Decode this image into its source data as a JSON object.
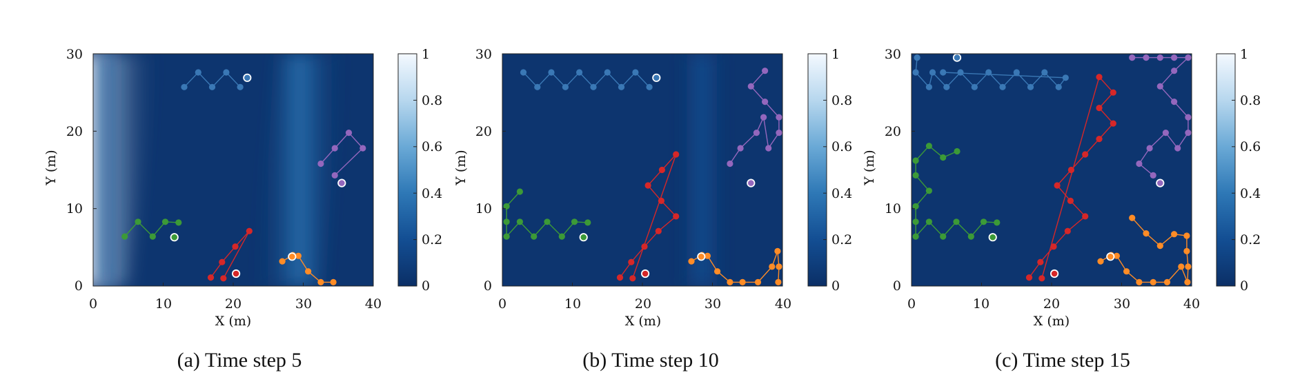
{
  "chart_data": [
    {
      "type": "heatmap",
      "caption": "(a) Time step 5",
      "xlabel": "X (m)",
      "ylabel": "Y (m)",
      "xlim": [
        0,
        40
      ],
      "ylim": [
        0,
        30
      ],
      "xticks": [
        "0",
        "10",
        "20",
        "30",
        "40"
      ],
      "yticks": [
        "0",
        "10",
        "20",
        "30"
      ],
      "colorbar": {
        "range": [
          0,
          1
        ],
        "ticks": [
          "0",
          "0.2",
          "0.4",
          "0.6",
          "0.8",
          "1"
        ]
      },
      "colormap": [
        "#0b2f66",
        "#134e93",
        "#2e78b6",
        "#6aa9d6",
        "#b7d7ee",
        "#f4f9ff"
      ],
      "field_bands": [
        {
          "x_top": 2,
          "x_bottom": -2,
          "width": 14,
          "intensity": 0.95
        },
        {
          "x_top": 31,
          "x_bottom": 28,
          "width": 9,
          "intensity": 0.35
        },
        {
          "x_top": 2,
          "x_bottom": 2,
          "width": 4,
          "intensity": 0.3
        }
      ],
      "series": [
        {
          "color": "#3a78b5",
          "points": [
            [
              13,
              25.7
            ],
            [
              15,
              27.6
            ],
            [
              17,
              25.7
            ],
            [
              19,
              27.6
            ],
            [
              21,
              25.7
            ],
            [
              22,
              26.9
            ]
          ]
        },
        {
          "color": "#9467bd",
          "points": [
            [
              32.5,
              15.8
            ],
            [
              34.5,
              17.8
            ],
            [
              36.5,
              19.8
            ],
            [
              38.5,
              17.8
            ],
            [
              34.5,
              14.3
            ],
            [
              35.5,
              13.3
            ]
          ]
        },
        {
          "color": "#3c9a37",
          "points": [
            [
              4.5,
              6.4
            ],
            [
              6.4,
              8.3
            ],
            [
              8.5,
              6.4
            ],
            [
              10.3,
              8.3
            ],
            [
              12.2,
              8.2
            ],
            [
              11.6,
              6.3
            ]
          ]
        },
        {
          "color": "#d62728",
          "points": [
            [
              16.8,
              1.1
            ],
            [
              18.4,
              3.1
            ],
            [
              20.3,
              5.1
            ],
            [
              22.3,
              7.1
            ],
            [
              18.6,
              1.0
            ],
            [
              20.4,
              1.6
            ]
          ]
        },
        {
          "color": "#ff8c26",
          "points": [
            [
              27,
              3.2
            ],
            [
              28.5,
              4.0
            ],
            [
              29.3,
              3.9
            ],
            [
              30.7,
              1.9
            ],
            [
              32.5,
              0.5
            ],
            [
              34.3,
              0.5
            ],
            [
              28.4,
              3.8
            ]
          ]
        }
      ]
    },
    {
      "type": "heatmap",
      "caption": "(b) Time step 10",
      "xlabel": "X (m)",
      "ylabel": "Y (m)",
      "xlim": [
        0,
        40
      ],
      "ylim": [
        0,
        30
      ],
      "xticks": [
        "0",
        "10",
        "20",
        "30",
        "40"
      ],
      "yticks": [
        "0",
        "10",
        "20",
        "30"
      ],
      "colorbar": {
        "range": [
          0,
          1
        ],
        "ticks": [
          "0",
          "0.2",
          "0.4",
          "0.6",
          "0.8",
          "1"
        ]
      },
      "colormap": [
        "#0b2f66",
        "#134e93",
        "#2e78b6",
        "#6aa9d6",
        "#b7d7ee",
        "#f4f9ff"
      ],
      "field_bands": [
        {
          "x_top": 28.5,
          "x_bottom": 28.5,
          "width": 6,
          "intensity": 0.22
        }
      ],
      "series": [
        {
          "color": "#3a78b5",
          "points": [
            [
              3,
              27.6
            ],
            [
              5,
              25.7
            ],
            [
              7,
              27.6
            ],
            [
              9,
              25.7
            ],
            [
              11,
              27.6
            ],
            [
              13,
              25.7
            ],
            [
              15,
              27.6
            ],
            [
              17,
              25.7
            ],
            [
              19,
              27.6
            ],
            [
              21,
              25.7
            ],
            [
              22,
              26.9
            ]
          ]
        },
        {
          "color": "#9467bd",
          "points": [
            [
              32.5,
              15.8
            ],
            [
              34,
              17.8
            ],
            [
              36.3,
              19.8
            ],
            [
              37.3,
              21.8
            ],
            [
              38,
              17.8
            ],
            [
              39.5,
              19.8
            ],
            [
              39.5,
              21.8
            ],
            [
              37.5,
              23.8
            ],
            [
              35.5,
              25.8
            ],
            [
              37.5,
              27.8
            ],
            [
              35.5,
              13.3
            ]
          ]
        },
        {
          "color": "#3c9a37",
          "points": [
            [
              2.5,
              12.2
            ],
            [
              0.6,
              10.3
            ],
            [
              0.6,
              8.3
            ],
            [
              0.6,
              6.4
            ],
            [
              2.5,
              8.3
            ],
            [
              4.5,
              6.4
            ],
            [
              6.4,
              8.3
            ],
            [
              8.5,
              6.4
            ],
            [
              10.3,
              8.3
            ],
            [
              12.2,
              8.2
            ],
            [
              11.6,
              6.3
            ]
          ]
        },
        {
          "color": "#d62728",
          "points": [
            [
              16.8,
              1.1
            ],
            [
              18.4,
              3.1
            ],
            [
              20.3,
              5.1
            ],
            [
              22.3,
              7.1
            ],
            [
              24.8,
              9.0
            ],
            [
              22.7,
              11.0
            ],
            [
              20.8,
              13.0
            ],
            [
              22.8,
              15.0
            ],
            [
              24.8,
              17.0
            ],
            [
              18.6,
              1.0
            ],
            [
              20.4,
              1.6
            ]
          ]
        },
        {
          "color": "#ff8c26",
          "points": [
            [
              27,
              3.2
            ],
            [
              28.5,
              4.0
            ],
            [
              29.3,
              3.9
            ],
            [
              30.7,
              1.9
            ],
            [
              32.5,
              0.5
            ],
            [
              34.3,
              0.5
            ],
            [
              36.5,
              0.5
            ],
            [
              38.5,
              2.5
            ],
            [
              39.3,
              4.5
            ],
            [
              39.5,
              2.5
            ],
            [
              39.4,
              0.5
            ],
            [
              28.4,
              3.8
            ]
          ]
        }
      ]
    },
    {
      "type": "heatmap",
      "caption": "(c) Time step 15",
      "xlabel": "X (m)",
      "ylabel": "Y (m)",
      "xlim": [
        0,
        40
      ],
      "ylim": [
        0,
        30
      ],
      "xticks": [
        "0",
        "10",
        "20",
        "30",
        "40"
      ],
      "yticks": [
        "0",
        "10",
        "20",
        "30"
      ],
      "colorbar": {
        "range": [
          0,
          1
        ],
        "ticks": [
          "0",
          "0.2",
          "0.4",
          "0.6",
          "0.8",
          "1"
        ]
      },
      "colormap": [
        "#0b2f66",
        "#134e93",
        "#2e78b6",
        "#6aa9d6",
        "#b7d7ee",
        "#f4f9ff"
      ],
      "field_bands": [],
      "series": [
        {
          "color": "#3a78b5",
          "points": [
            [
              0.8,
              29.5
            ],
            [
              0.6,
              27.6
            ],
            [
              2.5,
              25.7
            ],
            [
              3,
              27.6
            ],
            [
              5,
              25.7
            ],
            [
              7,
              27.6
            ],
            [
              9,
              25.7
            ],
            [
              11,
              27.6
            ],
            [
              13,
              25.7
            ],
            [
              15,
              27.6
            ],
            [
              17,
              25.7
            ],
            [
              19,
              27.6
            ],
            [
              21,
              25.7
            ],
            [
              22,
              26.9
            ],
            [
              4.5,
              27.6
            ],
            [
              6.5,
              29.5
            ]
          ]
        },
        {
          "color": "#9467bd",
          "points": [
            [
              31.5,
              29.5
            ],
            [
              33.5,
              29.5
            ],
            [
              35.5,
              29.5
            ],
            [
              37.5,
              29.5
            ],
            [
              39.5,
              29.5
            ],
            [
              37.5,
              27.8
            ],
            [
              35.5,
              25.8
            ],
            [
              37.5,
              23.8
            ],
            [
              39.5,
              21.8
            ],
            [
              39.5,
              19.8
            ],
            [
              38,
              17.8
            ],
            [
              36.3,
              19.8
            ],
            [
              34,
              17.8
            ],
            [
              32.5,
              15.8
            ],
            [
              34.5,
              14.3
            ],
            [
              35.5,
              13.3
            ]
          ]
        },
        {
          "color": "#3c9a37",
          "points": [
            [
              6.5,
              17.4
            ],
            [
              4.5,
              16.6
            ],
            [
              2.5,
              18.1
            ],
            [
              0.6,
              16.2
            ],
            [
              0.6,
              14.3
            ],
            [
              2.5,
              12.3
            ],
            [
              0.6,
              10.3
            ],
            [
              0.6,
              8.3
            ],
            [
              0.6,
              6.4
            ],
            [
              2.5,
              8.3
            ],
            [
              4.5,
              6.4
            ],
            [
              6.4,
              8.3
            ],
            [
              8.5,
              6.4
            ],
            [
              10.3,
              8.3
            ],
            [
              12.2,
              8.2
            ],
            [
              11.6,
              6.3
            ]
          ]
        },
        {
          "color": "#d62728",
          "points": [
            [
              16.8,
              1.1
            ],
            [
              18.4,
              3.1
            ],
            [
              20.3,
              5.1
            ],
            [
              22.3,
              7.1
            ],
            [
              24.8,
              9.0
            ],
            [
              22.7,
              11.0
            ],
            [
              20.8,
              13.0
            ],
            [
              22.8,
              15.0
            ],
            [
              24.8,
              17.0
            ],
            [
              26.8,
              19.0
            ],
            [
              28.8,
              21.0
            ],
            [
              26.8,
              23.0
            ],
            [
              28.8,
              25.0
            ],
            [
              26.8,
              27.0
            ],
            [
              18.6,
              1.0
            ],
            [
              20.4,
              1.6
            ]
          ]
        },
        {
          "color": "#ff8c26",
          "points": [
            [
              31.5,
              8.8
            ],
            [
              33.5,
              6.8
            ],
            [
              35.5,
              5.2
            ],
            [
              37.5,
              6.7
            ],
            [
              39.3,
              6.5
            ],
            [
              39.3,
              4.5
            ],
            [
              39.5,
              2.5
            ],
            [
              39.4,
              0.5
            ],
            [
              38.5,
              2.5
            ],
            [
              36.5,
              0.5
            ],
            [
              34.5,
              0.5
            ],
            [
              32.5,
              0.5
            ],
            [
              30.7,
              1.9
            ],
            [
              29.3,
              3.9
            ],
            [
              28.5,
              4.0
            ],
            [
              27,
              3.2
            ],
            [
              28.4,
              3.8
            ]
          ]
        }
      ]
    }
  ]
}
